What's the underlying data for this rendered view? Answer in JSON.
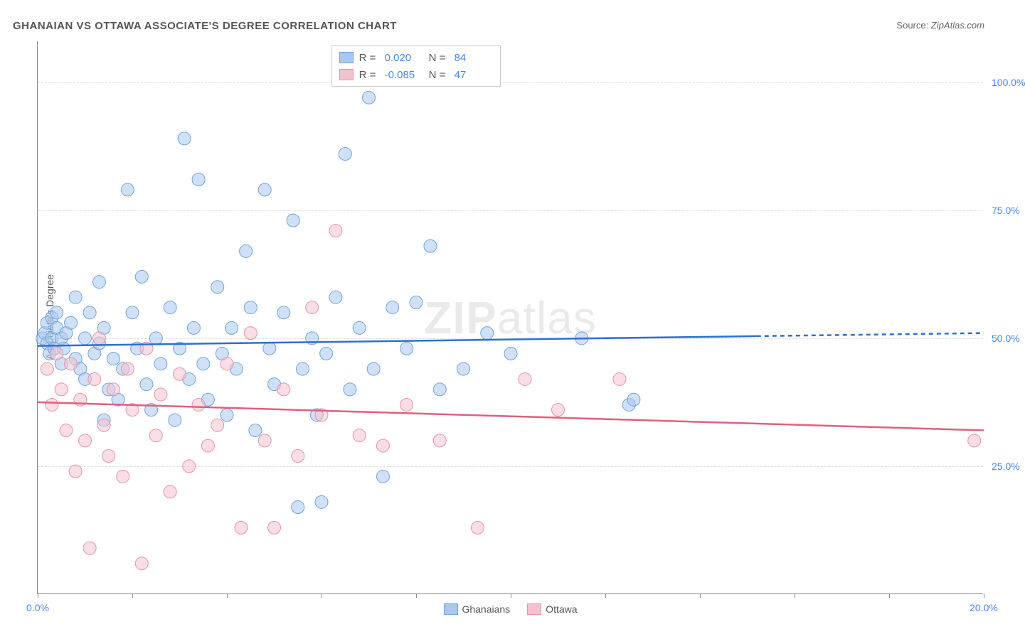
{
  "title": "GHANAIAN VS OTTAWA ASSOCIATE'S DEGREE CORRELATION CHART",
  "source_label": "Source:",
  "source_value": "ZipAtlas.com",
  "ylabel": "Associate's Degree",
  "watermark_bold": "ZIP",
  "watermark_rest": "atlas",
  "chart": {
    "type": "scatter",
    "xlim": [
      0,
      20
    ],
    "ylim": [
      0,
      108
    ],
    "x_ticks": [
      0,
      2,
      4,
      6,
      8,
      10,
      12,
      14,
      16,
      18,
      20
    ],
    "x_tick_labels": {
      "0": "0.0%",
      "20": "20.0%"
    },
    "y_ticks": [
      25,
      50,
      75,
      100
    ],
    "y_tick_labels": [
      "25.0%",
      "50.0%",
      "75.0%",
      "100.0%"
    ],
    "grid_color": "#dddddd",
    "axis_color": "#888888",
    "background_color": "#ffffff",
    "marker_radius": 9,
    "marker_opacity": 0.55,
    "line_width": 2.5,
    "series": [
      {
        "name": "Ghanaians",
        "color_fill": "#a9c8ef",
        "color_stroke": "#6fa3de",
        "line_color": "#2e6fd0",
        "R": "0.020",
        "N": "84",
        "trend": {
          "y_at_x0": 48.5,
          "y_at_x20": 51.0,
          "solid_until_x": 15.2
        },
        "points": [
          [
            0.1,
            50
          ],
          [
            0.15,
            51
          ],
          [
            0.2,
            49
          ],
          [
            0.2,
            53
          ],
          [
            0.25,
            47
          ],
          [
            0.3,
            50
          ],
          [
            0.3,
            54
          ],
          [
            0.35,
            48
          ],
          [
            0.4,
            52
          ],
          [
            0.4,
            55
          ],
          [
            0.5,
            50
          ],
          [
            0.5,
            45
          ],
          [
            0.55,
            48
          ],
          [
            0.6,
            51
          ],
          [
            0.7,
            53
          ],
          [
            0.8,
            46
          ],
          [
            0.8,
            58
          ],
          [
            0.9,
            44
          ],
          [
            1.0,
            50
          ],
          [
            1.0,
            42
          ],
          [
            1.1,
            55
          ],
          [
            1.2,
            47
          ],
          [
            1.3,
            49
          ],
          [
            1.3,
            61
          ],
          [
            1.4,
            34
          ],
          [
            1.4,
            52
          ],
          [
            1.5,
            40
          ],
          [
            1.6,
            46
          ],
          [
            1.7,
            38
          ],
          [
            1.8,
            44
          ],
          [
            1.9,
            79
          ],
          [
            2.0,
            55
          ],
          [
            2.1,
            48
          ],
          [
            2.2,
            62
          ],
          [
            2.3,
            41
          ],
          [
            2.4,
            36
          ],
          [
            2.5,
            50
          ],
          [
            2.6,
            45
          ],
          [
            2.8,
            56
          ],
          [
            2.9,
            34
          ],
          [
            3.0,
            48
          ],
          [
            3.1,
            89
          ],
          [
            3.2,
            42
          ],
          [
            3.3,
            52
          ],
          [
            3.4,
            81
          ],
          [
            3.5,
            45
          ],
          [
            3.6,
            38
          ],
          [
            3.8,
            60
          ],
          [
            3.9,
            47
          ],
          [
            4.0,
            35
          ],
          [
            4.1,
            52
          ],
          [
            4.2,
            44
          ],
          [
            4.4,
            67
          ],
          [
            4.5,
            56
          ],
          [
            4.6,
            32
          ],
          [
            4.8,
            79
          ],
          [
            4.9,
            48
          ],
          [
            5.0,
            41
          ],
          [
            5.2,
            55
          ],
          [
            5.4,
            73
          ],
          [
            5.5,
            17
          ],
          [
            5.6,
            44
          ],
          [
            5.8,
            50
          ],
          [
            5.9,
            35
          ],
          [
            6.0,
            18
          ],
          [
            6.1,
            47
          ],
          [
            6.3,
            58
          ],
          [
            6.5,
            86
          ],
          [
            6.6,
            40
          ],
          [
            6.8,
            52
          ],
          [
            7.0,
            97
          ],
          [
            7.1,
            44
          ],
          [
            7.3,
            23
          ],
          [
            7.5,
            56
          ],
          [
            7.8,
            48
          ],
          [
            8.0,
            57
          ],
          [
            8.3,
            68
          ],
          [
            8.5,
            40
          ],
          [
            9.0,
            44
          ],
          [
            9.5,
            51
          ],
          [
            10.0,
            47
          ],
          [
            11.5,
            50
          ],
          [
            12.5,
            37
          ],
          [
            12.6,
            38
          ]
        ]
      },
      {
        "name": "Ottawa",
        "color_fill": "#f4c2cf",
        "color_stroke": "#e791a8",
        "line_color": "#e0607e",
        "R": "-0.085",
        "N": "47",
        "trend": {
          "y_at_x0": 37.5,
          "y_at_x20": 32.0,
          "solid_until_x": 20
        },
        "points": [
          [
            0.2,
            44
          ],
          [
            0.3,
            37
          ],
          [
            0.4,
            47
          ],
          [
            0.5,
            40
          ],
          [
            0.6,
            32
          ],
          [
            0.7,
            45
          ],
          [
            0.8,
            24
          ],
          [
            0.9,
            38
          ],
          [
            1.0,
            30
          ],
          [
            1.1,
            9
          ],
          [
            1.2,
            42
          ],
          [
            1.3,
            50
          ],
          [
            1.4,
            33
          ],
          [
            1.5,
            27
          ],
          [
            1.6,
            40
          ],
          [
            1.8,
            23
          ],
          [
            1.9,
            44
          ],
          [
            2.0,
            36
          ],
          [
            2.2,
            6
          ],
          [
            2.3,
            48
          ],
          [
            2.5,
            31
          ],
          [
            2.6,
            39
          ],
          [
            2.8,
            20
          ],
          [
            3.0,
            43
          ],
          [
            3.2,
            25
          ],
          [
            3.4,
            37
          ],
          [
            3.6,
            29
          ],
          [
            3.8,
            33
          ],
          [
            4.0,
            45
          ],
          [
            4.3,
            13
          ],
          [
            4.5,
            51
          ],
          [
            4.8,
            30
          ],
          [
            5.0,
            13
          ],
          [
            5.2,
            40
          ],
          [
            5.5,
            27
          ],
          [
            5.8,
            56
          ],
          [
            6.0,
            35
          ],
          [
            6.3,
            71
          ],
          [
            6.8,
            31
          ],
          [
            7.3,
            29
          ],
          [
            7.8,
            37
          ],
          [
            8.5,
            30
          ],
          [
            9.3,
            13
          ],
          [
            10.3,
            42
          ],
          [
            11.0,
            36
          ],
          [
            12.3,
            42
          ],
          [
            19.8,
            30
          ]
        ]
      }
    ]
  },
  "stats_labels": {
    "R": "R =",
    "N": "N ="
  },
  "legend": {
    "series1": "Ghanaians",
    "series2": "Ottawa"
  }
}
